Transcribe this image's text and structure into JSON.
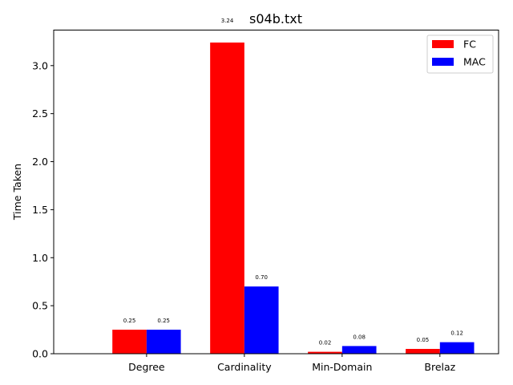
{
  "chart_data": {
    "type": "bar",
    "title": "s04b.txt",
    "xlabel": "",
    "ylabel": "Time Taken",
    "categories": [
      "Degree",
      "Cardinality",
      "Min-Domain",
      "Brelaz"
    ],
    "series": [
      {
        "name": "FC",
        "color": "#ff0000",
        "values": [
          0.25,
          3.24,
          0.02,
          0.05
        ],
        "labels": [
          "0.25",
          "3.24",
          "0.02",
          "0.05"
        ]
      },
      {
        "name": "MAC",
        "color": "#0000ff",
        "values": [
          0.25,
          0.7,
          0.08,
          0.12
        ],
        "labels": [
          "0.25",
          "0.70",
          "0.08",
          "0.12"
        ]
      }
    ],
    "ylim": [
      0,
      3.37
    ],
    "yticks": [
      "0.0",
      "0.5",
      "1.0",
      "1.5",
      "2.0",
      "2.5",
      "3.0"
    ],
    "grid": false,
    "legend_position": "top-right"
  }
}
